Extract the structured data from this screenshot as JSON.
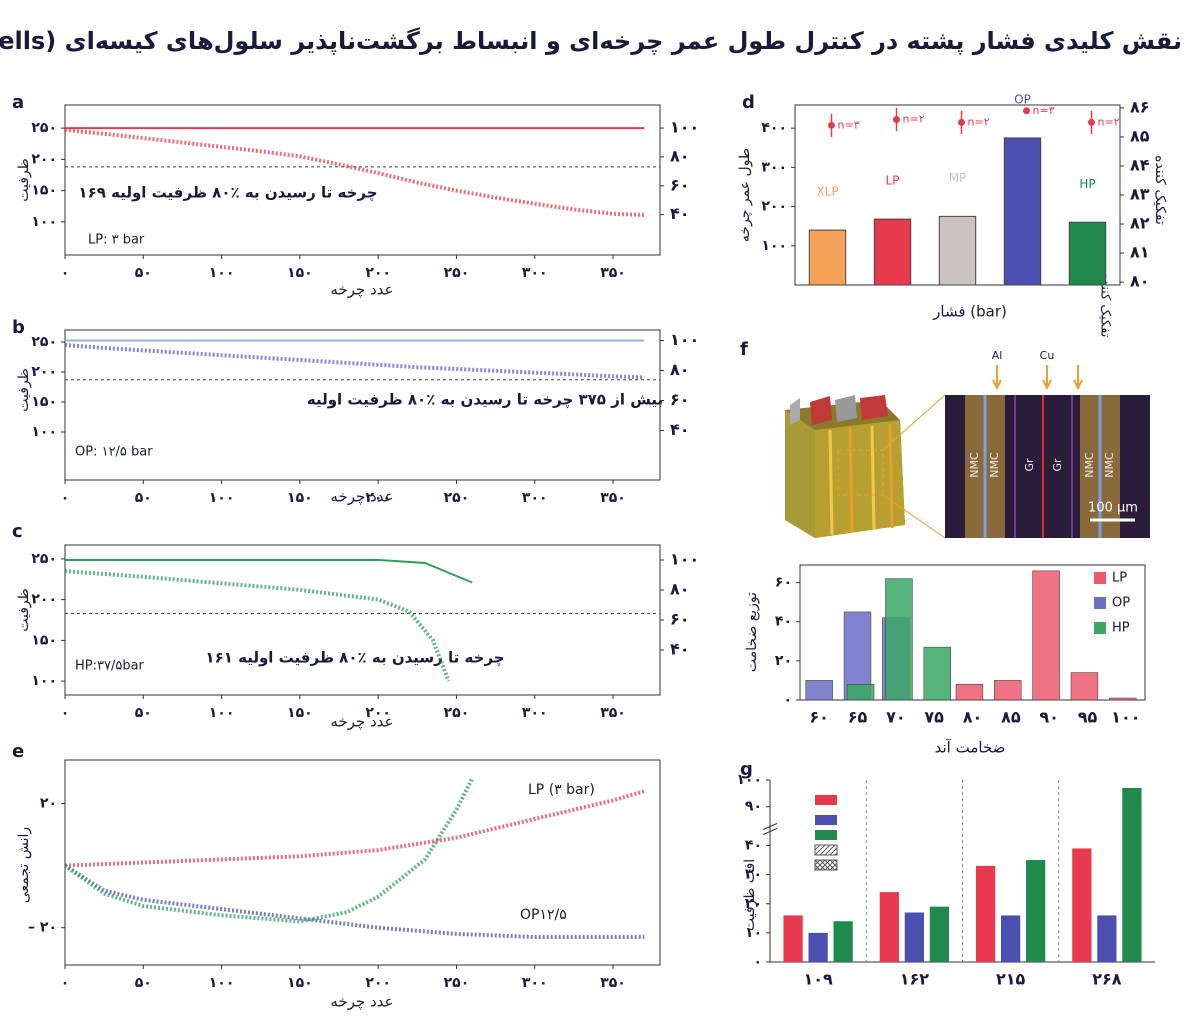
{
  "title": "نقش کلیدی فشار پشته در کنترل طول عمر چرخه‌ای و انبساط برگشت‌ناپذیر سلول‌های کیسه‌ای (Pouch Cells)",
  "chart_data": [
    {
      "type": "line",
      "panel": "a",
      "ylabel": "ظرفیت",
      "xlabel": "عدد چرخه",
      "xlim": [
        0,
        380
      ],
      "xticks": [
        {
          "value": 0,
          "label": "۰"
        },
        {
          "value": 50,
          "label": "۵۰"
        },
        {
          "value": 100,
          "label": "۱۰۰"
        },
        {
          "value": 150,
          "label": "۱۵۰"
        },
        {
          "value": 200,
          "label": "۲۰۰"
        },
        {
          "value": 250,
          "label": "۲۵۰"
        },
        {
          "value": 300,
          "label": "۳۰۰"
        },
        {
          "value": 350,
          "label": "۳۵۰"
        }
      ],
      "ylim": [
        47,
        287
      ],
      "yticks": [
        {
          "value": 100,
          "label": "۱۰۰"
        },
        {
          "value": 150,
          "label": "۱۵۰"
        },
        {
          "value": 200,
          "label": "۲۰۰"
        },
        {
          "value": 250,
          "label": "۲۵۰"
        }
      ],
      "y2lim": [
        12,
        116
      ],
      "y2ticks": [
        {
          "value": 40,
          "label": "۴۰"
        },
        {
          "value": 60,
          "label": "۶۰"
        },
        {
          "value": 80,
          "label": "۸۰"
        },
        {
          "value": 100,
          "label": "۱۰۰"
        }
      ],
      "reference_line": 188,
      "annotations": [
        "۱۶۹ چرخه تا رسیدن به ٪۸۰ ظرفیت اولیه",
        "LP: ۳ bar"
      ],
      "series": [
        {
          "color": "#e8394d",
          "x": [
            0,
            25,
            50,
            75,
            100,
            125,
            150,
            175,
            200,
            225,
            250,
            275,
            300,
            325,
            350,
            370
          ],
          "values": [
            247,
            241,
            234,
            227,
            220,
            213,
            205,
            192,
            178,
            163,
            150,
            139,
            129,
            120,
            113,
            111
          ]
        },
        {
          "color": "#e8394d",
          "axis": "y2",
          "x": [
            0,
            100,
            200,
            300,
            370
          ],
          "values": [
            100,
            100,
            100,
            100,
            100
          ]
        }
      ]
    },
    {
      "type": "line",
      "panel": "b",
      "ylabel": "ظرفیت",
      "xlabel": "عدد چرخه",
      "xlim": [
        0,
        380
      ],
      "xticks": [
        {
          "value": 0,
          "label": "۰"
        },
        {
          "value": 50,
          "label": "۵۰"
        },
        {
          "value": 100,
          "label": "۱۰۰"
        },
        {
          "value": 150,
          "label": "۱۵۰"
        },
        {
          "value": 200,
          "label": "۲۰۰"
        },
        {
          "value": 250,
          "label": "۲۵۰"
        },
        {
          "value": 300,
          "label": "۳۰۰"
        },
        {
          "value": 350,
          "label": "۳۵۰"
        }
      ],
      "ylim": [
        20,
        270
      ],
      "yticks": [
        {
          "value": 100,
          "label": "۱۰۰"
        },
        {
          "value": 150,
          "label": "۱۵۰"
        },
        {
          "value": 200,
          "label": "۲۰۰"
        },
        {
          "value": 250,
          "label": "۲۵۰"
        }
      ],
      "y2lim": [
        7,
        107
      ],
      "y2ticks": [
        {
          "value": 40,
          "label": "۴۰"
        },
        {
          "value": 60,
          "label": "۶۰"
        },
        {
          "value": 80,
          "label": "۸۰"
        },
        {
          "value": 100,
          "label": "۱۰۰"
        }
      ],
      "reference_line": 187,
      "annotations": [
        "بیش از ۳۷۵ چرخه تا رسیدن به ٪۸۰ ظرفیت اولیه",
        "OP: ۱۲/۵ bar"
      ],
      "series": [
        {
          "color": "#5b5fc7",
          "x": [
            0,
            25,
            50,
            75,
            100,
            125,
            150,
            175,
            200,
            225,
            250,
            275,
            300,
            325,
            350,
            370
          ],
          "values": [
            245,
            240,
            236,
            232,
            228,
            224,
            220,
            216,
            212,
            208,
            205,
            202,
            199,
            196,
            193,
            191
          ]
        },
        {
          "color": "#8fb3e0",
          "axis": "y2",
          "x": [
            0,
            100,
            200,
            300,
            370
          ],
          "values": [
            100,
            100,
            100,
            100,
            100
          ]
        }
      ]
    },
    {
      "type": "line",
      "panel": "c",
      "ylabel": "ظرفیت",
      "xlabel": "عدد چرخه",
      "xlim": [
        0,
        380
      ],
      "xticks": [
        {
          "value": 0,
          "label": "۰"
        },
        {
          "value": 50,
          "label": "۵۰"
        },
        {
          "value": 100,
          "label": "۱۰۰"
        },
        {
          "value": 150,
          "label": "۱۵۰"
        },
        {
          "value": 200,
          "label": "۲۰۰"
        },
        {
          "value": 250,
          "label": "۲۵۰"
        },
        {
          "value": 300,
          "label": "۳۰۰"
        },
        {
          "value": 350,
          "label": "۳۵۰"
        }
      ],
      "ylim": [
        83,
        267
      ],
      "yticks": [
        {
          "value": 100,
          "label": "۱۰۰"
        },
        {
          "value": 150,
          "label": "۱۵۰"
        },
        {
          "value": 200,
          "label": "۲۰۰"
        },
        {
          "value": 250,
          "label": "۲۵۰"
        }
      ],
      "y2lim": [
        10,
        110
      ],
      "y2ticks": [
        {
          "value": 40,
          "label": "۴۰"
        },
        {
          "value": 60,
          "label": "۶۰"
        },
        {
          "value": 80,
          "label": "۸۰"
        },
        {
          "value": 100,
          "label": "۱۰۰"
        }
      ],
      "reference_line": 183,
      "annotations": [
        "۱۶۱ چرخه تا رسیدن به ٪۸۰ ظرفیت اولیه",
        "HP:۳۷/۵bar"
      ],
      "series": [
        {
          "color": "#2e9e5b",
          "x": [
            0,
            50,
            100,
            150,
            200,
            220,
            235,
            245
          ],
          "values": [
            235,
            228,
            220,
            212,
            200,
            185,
            150,
            100
          ]
        },
        {
          "color": "#2e9e5b",
          "axis": "y2",
          "x": [
            0,
            100,
            200,
            230,
            260
          ],
          "values": [
            100,
            100,
            100,
            98,
            85
          ]
        }
      ]
    },
    {
      "type": "line",
      "panel": "e",
      "ylabel": "رانش تجمعی",
      "xlabel": "عدد چرخه",
      "xlim": [
        0,
        380
      ],
      "xticks": [
        {
          "value": 0,
          "label": "۰"
        },
        {
          "value": 50,
          "label": "۵۰"
        },
        {
          "value": 100,
          "label": "۱۰۰"
        },
        {
          "value": 150,
          "label": "۱۵۰"
        },
        {
          "value": 200,
          "label": "۲۰۰"
        },
        {
          "value": 250,
          "label": "۲۵۰"
        },
        {
          "value": 300,
          "label": "۳۰۰"
        },
        {
          "value": 350,
          "label": "۳۵۰"
        }
      ],
      "ylim": [
        -32,
        34
      ],
      "yticks": [
        {
          "value": -20,
          "label": "– ۲۰"
        },
        {
          "value": 20,
          "label": "۲۰"
        }
      ],
      "annotations": [
        "LP (۳ bar)",
        "OP۱۲/۵"
      ],
      "series": [
        {
          "color": "#e8394d",
          "x": [
            0,
            50,
            100,
            150,
            200,
            250,
            300,
            350,
            370
          ],
          "values": [
            0,
            1,
            2,
            3,
            5,
            9,
            15,
            21,
            24
          ]
        },
        {
          "color": "#4b50b0",
          "x": [
            0,
            25,
            50,
            100,
            150,
            200,
            250,
            300,
            350,
            370
          ],
          "values": [
            0,
            -8,
            -11,
            -14,
            -17,
            -20,
            -22,
            -23,
            -23,
            -23
          ]
        },
        {
          "color": "#2e9e5b",
          "x": [
            0,
            25,
            50,
            100,
            150,
            180,
            200,
            230,
            250,
            260
          ],
          "values": [
            0,
            -9,
            -13,
            -16,
            -18,
            -15,
            -10,
            2,
            18,
            28
          ]
        }
      ]
    },
    {
      "type": "bar",
      "panel": "d",
      "ylabel": "طول عمر چرخه",
      "xlabel": "فشار (bar)",
      "y2label": "تفکیک کننده",
      "categories": [
        "XLP",
        "LP",
        "MP",
        "OP",
        "HP"
      ],
      "values": [
        140,
        168,
        175,
        375,
        160
      ],
      "colors": [
        "#f4a259",
        "#e8394d",
        "#c9c3c3",
        "#4b50b0",
        "#1f8a4c"
      ],
      "ylim": [
        0,
        459
      ],
      "yticks": [
        {
          "value": 100,
          "label": "۱۰۰"
        },
        {
          "value": 200,
          "label": "۲۰۰"
        },
        {
          "value": 300,
          "label": "۳۰۰"
        },
        {
          "value": 400,
          "label": "۴۰۰"
        }
      ],
      "y2lim": [
        79.9,
        86.1
      ],
      "y2ticks": [
        {
          "value": 80,
          "label": "۸۰"
        },
        {
          "value": 81,
          "label": "۸۱"
        },
        {
          "value": 82,
          "label": "۸۲"
        },
        {
          "value": 83,
          "label": "۸۳"
        },
        {
          "value": 84,
          "label": "۸۴"
        },
        {
          "value": 85,
          "label": "۸۵"
        },
        {
          "value": 86,
          "label": "۸۶"
        }
      ],
      "series": [
        {
          "axis": "y2",
          "color": "#e8394d",
          "values": [
            85.4,
            85.6,
            85.5,
            85.9,
            85.5
          ],
          "errors": [
            0.4,
            0.4,
            0.4,
            0.1,
            0.4
          ],
          "annotations": [
            "n=۳",
            "n=۲",
            "n=۲",
            "n=۳",
            "n=۲"
          ]
        }
      ]
    },
    {
      "type": "bar",
      "panel": "f",
      "bar_mode": "overlay",
      "ylabel": "توزیع ضخامت",
      "xlabel": "ضخامت آند",
      "image_labels": [
        "Al",
        "Cu",
        "NMC",
        "NMC",
        "Gr",
        "Gr",
        "NMC",
        "NMC",
        "100 μm",
        "تفکیک کننده"
      ],
      "categories": [
        "۶۰",
        "۶۵",
        "۷۰",
        "۷۵",
        "۸۰",
        "۸۵",
        "۹۰",
        "۹۵",
        "۱۰۰"
      ],
      "ylim": [
        0,
        69
      ],
      "yticks": [
        {
          "value": 0,
          "label": "۰"
        },
        {
          "value": 20,
          "label": "۲۰"
        },
        {
          "value": 40,
          "label": "۴۰"
        },
        {
          "value": 60,
          "label": "۶۰"
        }
      ],
      "series": [
        {
          "name": "LP",
          "color": "#ec5a6c",
          "values": [
            0,
            0,
            0,
            0,
            8,
            10,
            66,
            14,
            1
          ]
        },
        {
          "name": "OP",
          "color": "#6b6fc4",
          "values": [
            10,
            45,
            42,
            0,
            0,
            0,
            0,
            0,
            0
          ]
        },
        {
          "name": "HP",
          "color": "#3aa765",
          "values": [
            0,
            8,
            62,
            27,
            0,
            0,
            0,
            0,
            0
          ]
        }
      ]
    },
    {
      "type": "bar",
      "panel": "g",
      "bar_mode": "group",
      "ylabel": "افت ظرفیت",
      "categories": [
        "۱۰۹",
        "۱۶۲",
        "۲۱۵",
        "۲۶۸"
      ],
      "ylim": [
        0,
        100
      ],
      "axis_break": [
        45,
        85
      ],
      "yticks": [
        {
          "value": 0,
          "label": "۰"
        },
        {
          "value": 10,
          "label": "۱۰"
        },
        {
          "value": 20,
          "label": "۲۰"
        },
        {
          "value": 30,
          "label": "۳۰"
        },
        {
          "value": 40,
          "label": "۴۰"
        },
        {
          "value": 90,
          "label": "۹۰"
        },
        {
          "value": 100,
          "label": "۱۰۰"
        }
      ],
      "series": [
        {
          "color": "#e8394d",
          "values": [
            16,
            24,
            33,
            39
          ]
        },
        {
          "color": "#4b50b0",
          "values": [
            10,
            17,
            16,
            16
          ]
        },
        {
          "color": "#1f8a4c",
          "values": [
            14,
            19,
            35,
            97
          ]
        }
      ]
    }
  ]
}
